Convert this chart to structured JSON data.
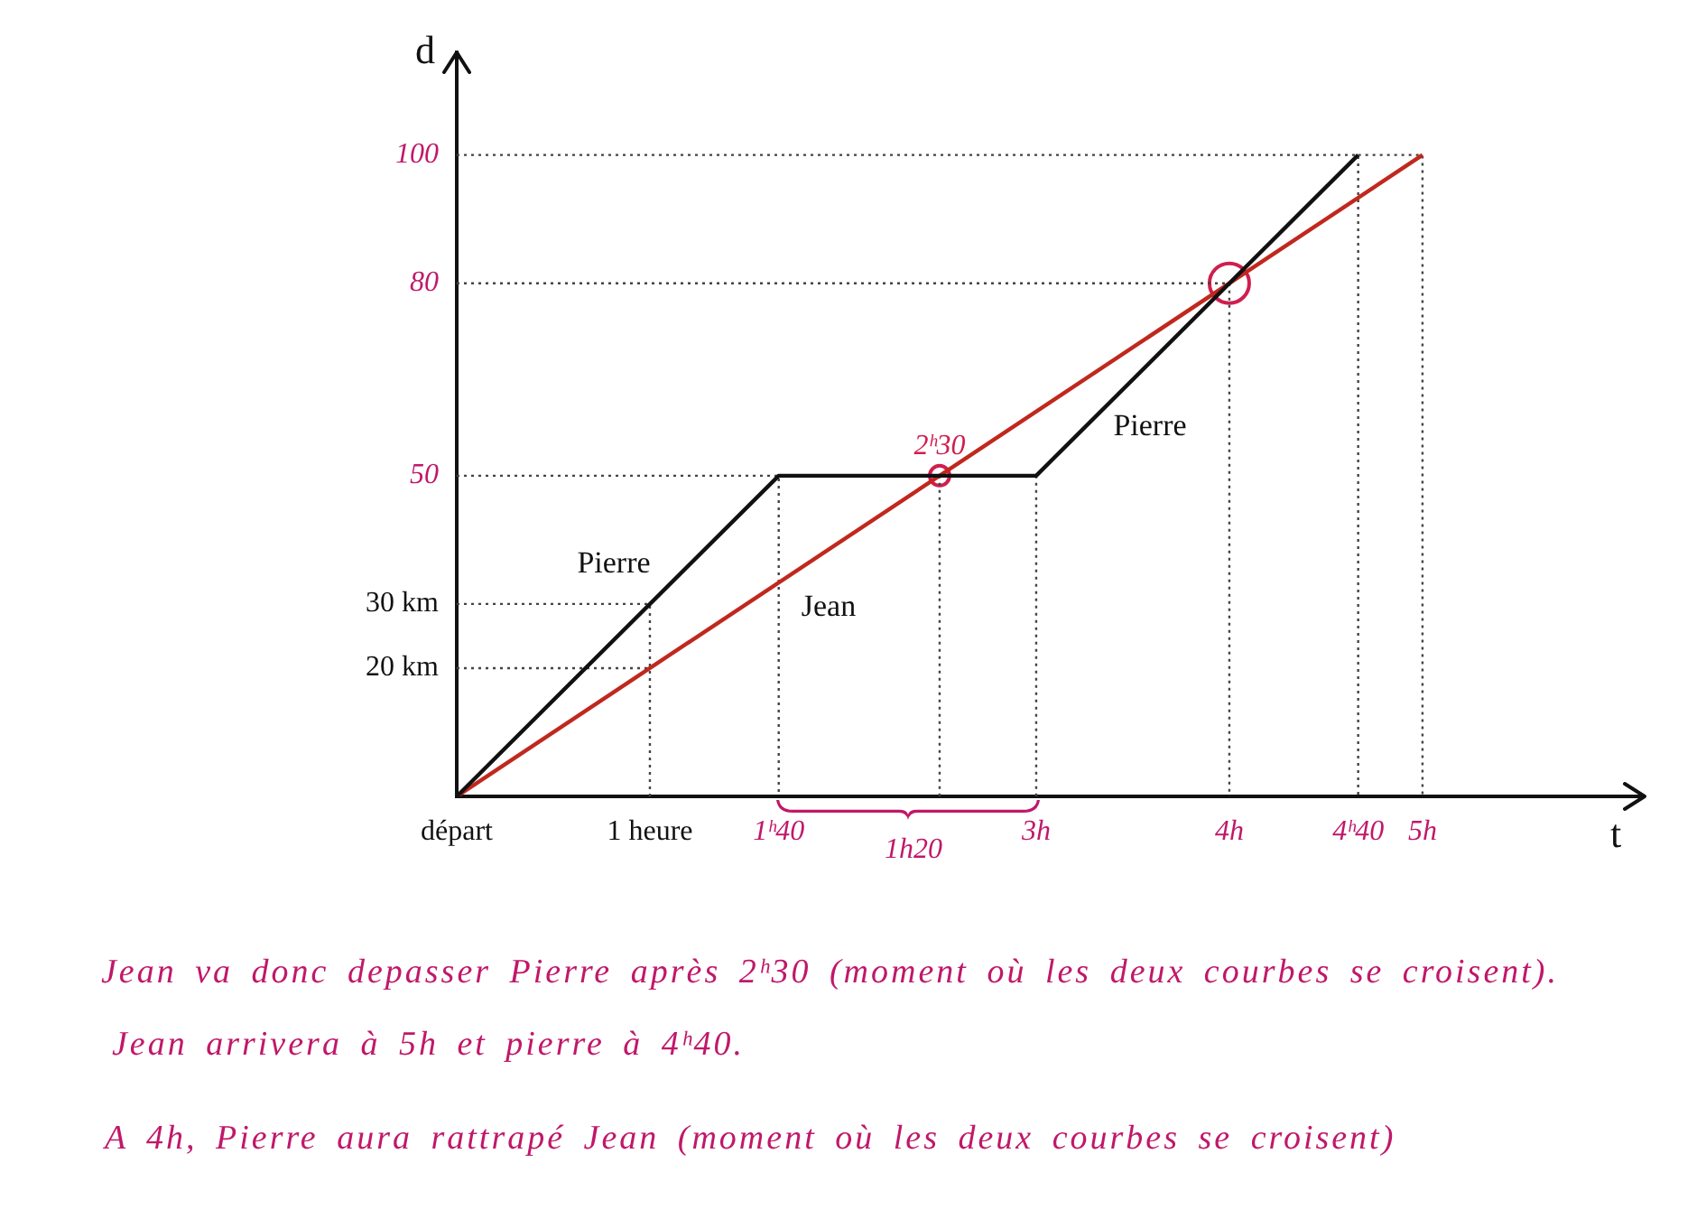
{
  "chart_data": {
    "type": "line",
    "xlabel": "t",
    "ylabel": "d",
    "xlim": [
      0,
      6.15
    ],
    "ylim": [
      0,
      116
    ],
    "xticks": [
      {
        "value": 0,
        "label": "départ"
      },
      {
        "value": 1,
        "label": "1 heure"
      },
      {
        "value": 1.667,
        "label": "1ʰ40"
      },
      {
        "value": 3,
        "label": "3h"
      },
      {
        "value": 4,
        "label": "4h"
      },
      {
        "value": 4.667,
        "label": "4ʰ40"
      },
      {
        "value": 5,
        "label": "5h"
      }
    ],
    "yticks": [
      {
        "value": 20,
        "label": "20 km"
      },
      {
        "value": 30,
        "label": "30 km"
      },
      50,
      80,
      100
    ],
    "series": [
      {
        "color": "#111111",
        "x": [
          0,
          1.667,
          3,
          4.667
        ],
        "values": [
          0,
          50,
          50,
          100
        ]
      },
      {
        "color": "#c0281e",
        "x": [
          0,
          5
        ],
        "values": [
          0,
          100
        ]
      },
      {
        "color": "#444444",
        "line_style": "dotted",
        "x": [
          0,
          1,
          1,
          null,
          0,
          1,
          null,
          0,
          1.667,
          1.667,
          null,
          2.5,
          2.5,
          null,
          3,
          3,
          null,
          0,
          4,
          4,
          null,
          0,
          4.667,
          4.667,
          null,
          4.667,
          5,
          5
        ],
        "values": [
          30,
          30,
          0,
          null,
          20,
          20,
          null,
          50,
          50,
          0,
          null,
          50,
          0,
          null,
          50,
          0,
          null,
          80,
          80,
          0,
          null,
          100,
          100,
          0,
          null,
          100,
          100,
          0
        ]
      },
      {
        "type": "bubble",
        "color": "#d01e4e",
        "x": [
          2.5,
          4
        ],
        "values": [
          50,
          80
        ],
        "sizes": [
          0.25,
          1
        ]
      }
    ],
    "annotations": [
      "Pierre",
      "Jean",
      "Pierre",
      {
        "text": "2ʰ30",
        "x": 2.5,
        "y": 50
      },
      "1h20",
      "Jean va donc depasser Pierre après 2ʰ30 (moment où les deux courbes se croisent).",
      "Jean arrivera à 5h et pierre à 4ʰ40.",
      "A 4h, Pierre aura rattrapé Jean (moment où les deux courbes se croisent)"
    ]
  }
}
